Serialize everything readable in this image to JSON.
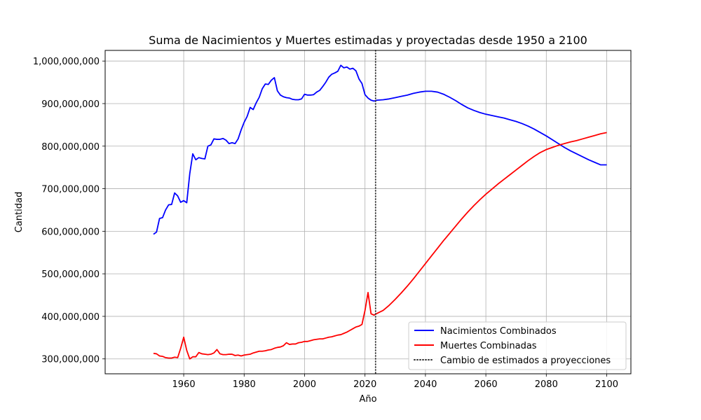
{
  "chart_data": {
    "type": "line",
    "title": "Suma de Nacimientos y Muertes estimadas y proyectadas desde 1950 a 2100",
    "xlabel": "Año",
    "ylabel": "Cantidad",
    "xlim": [
      1934,
      2108
    ],
    "ylim": [
      265000000,
      1025000000
    ],
    "xticks": [
      1960,
      1980,
      2000,
      2020,
      2040,
      2060,
      2080,
      2100
    ],
    "xtick_labels": [
      "1960",
      "1980",
      "2000",
      "2020",
      "2040",
      "2060",
      "2080",
      "2100"
    ],
    "yticks": [
      300000000,
      400000000,
      500000000,
      600000000,
      700000000,
      800000000,
      900000000,
      1000000000
    ],
    "ytick_labels": [
      "300,000,000",
      "400,000,000",
      "500,000,000",
      "600,000,000",
      "700,000,000",
      "800,000,000",
      "900,000,000",
      "1,000,000,000"
    ],
    "grid": true,
    "legend_position": "lower-right",
    "vline": {
      "x": 2023.5,
      "color": "#333333",
      "style": "dotted",
      "label": "Cambio de estimados a proyecciones"
    },
    "series": [
      {
        "name": "Nacimientos Combinados",
        "color": "#0000ff",
        "points": [
          [
            1950,
            593000000
          ],
          [
            1951,
            598000000
          ],
          [
            1952,
            630000000
          ],
          [
            1953,
            632000000
          ],
          [
            1954,
            650000000
          ],
          [
            1955,
            662000000
          ],
          [
            1956,
            663000000
          ],
          [
            1957,
            690000000
          ],
          [
            1958,
            683000000
          ],
          [
            1959,
            668000000
          ],
          [
            1960,
            672000000
          ],
          [
            1961,
            667000000
          ],
          [
            1962,
            735000000
          ],
          [
            1963,
            782000000
          ],
          [
            1964,
            768000000
          ],
          [
            1965,
            773000000
          ],
          [
            1966,
            771000000
          ],
          [
            1967,
            770000000
          ],
          [
            1968,
            800000000
          ],
          [
            1969,
            803000000
          ],
          [
            1970,
            817000000
          ],
          [
            1971,
            816000000
          ],
          [
            1972,
            816000000
          ],
          [
            1973,
            818000000
          ],
          [
            1974,
            814000000
          ],
          [
            1975,
            806000000
          ],
          [
            1976,
            808000000
          ],
          [
            1977,
            806000000
          ],
          [
            1978,
            817000000
          ],
          [
            1979,
            838000000
          ],
          [
            1980,
            856000000
          ],
          [
            1981,
            870000000
          ],
          [
            1982,
            891000000
          ],
          [
            1983,
            886000000
          ],
          [
            1984,
            902000000
          ],
          [
            1985,
            915000000
          ],
          [
            1986,
            935000000
          ],
          [
            1987,
            946000000
          ],
          [
            1988,
            945000000
          ],
          [
            1989,
            955000000
          ],
          [
            1990,
            961000000
          ],
          [
            1991,
            930000000
          ],
          [
            1992,
            920000000
          ],
          [
            1993,
            916000000
          ],
          [
            1994,
            914000000
          ],
          [
            1995,
            913000000
          ],
          [
            1996,
            910000000
          ],
          [
            1997,
            909000000
          ],
          [
            1998,
            909000000
          ],
          [
            1999,
            911000000
          ],
          [
            2000,
            922000000
          ],
          [
            2001,
            920000000
          ],
          [
            2002,
            920000000
          ],
          [
            2003,
            921000000
          ],
          [
            2004,
            927000000
          ],
          [
            2005,
            931000000
          ],
          [
            2006,
            940000000
          ],
          [
            2007,
            950000000
          ],
          [
            2008,
            962000000
          ],
          [
            2009,
            969000000
          ],
          [
            2010,
            972000000
          ],
          [
            2011,
            976000000
          ],
          [
            2012,
            990000000
          ],
          [
            2013,
            984000000
          ],
          [
            2014,
            986000000
          ],
          [
            2015,
            981000000
          ],
          [
            2016,
            983000000
          ],
          [
            2017,
            977000000
          ],
          [
            2018,
            958000000
          ],
          [
            2019,
            947000000
          ],
          [
            2020,
            921000000
          ],
          [
            2021,
            913000000
          ],
          [
            2022,
            908000000
          ],
          [
            2023,
            906000000
          ],
          [
            2024,
            908000000
          ],
          [
            2026,
            909000000
          ],
          [
            2028,
            911000000
          ],
          [
            2030,
            914000000
          ],
          [
            2032,
            917000000
          ],
          [
            2034,
            920000000
          ],
          [
            2036,
            924000000
          ],
          [
            2038,
            927000000
          ],
          [
            2040,
            929000000
          ],
          [
            2042,
            929000000
          ],
          [
            2044,
            927000000
          ],
          [
            2046,
            922000000
          ],
          [
            2048,
            915000000
          ],
          [
            2050,
            907000000
          ],
          [
            2052,
            898000000
          ],
          [
            2054,
            890000000
          ],
          [
            2056,
            884000000
          ],
          [
            2058,
            879000000
          ],
          [
            2060,
            875000000
          ],
          [
            2062,
            872000000
          ],
          [
            2064,
            869000000
          ],
          [
            2066,
            866000000
          ],
          [
            2068,
            862000000
          ],
          [
            2070,
            858000000
          ],
          [
            2072,
            853000000
          ],
          [
            2074,
            847000000
          ],
          [
            2076,
            840000000
          ],
          [
            2078,
            832000000
          ],
          [
            2080,
            824000000
          ],
          [
            2082,
            815000000
          ],
          [
            2084,
            806000000
          ],
          [
            2086,
            797000000
          ],
          [
            2088,
            789000000
          ],
          [
            2090,
            782000000
          ],
          [
            2092,
            775000000
          ],
          [
            2094,
            768000000
          ],
          [
            2096,
            762000000
          ],
          [
            2098,
            756000000
          ],
          [
            2100,
            756000000
          ]
        ]
      },
      {
        "name": "Muertes Combinadas",
        "color": "#ff0000",
        "points": [
          [
            1950,
            313000000
          ],
          [
            1951,
            312000000
          ],
          [
            1952,
            307000000
          ],
          [
            1953,
            306000000
          ],
          [
            1954,
            303000000
          ],
          [
            1955,
            302000000
          ],
          [
            1956,
            302000000
          ],
          [
            1957,
            304000000
          ],
          [
            1958,
            303000000
          ],
          [
            1959,
            325000000
          ],
          [
            1960,
            351000000
          ],
          [
            1961,
            320000000
          ],
          [
            1962,
            300000000
          ],
          [
            1963,
            305000000
          ],
          [
            1964,
            305000000
          ],
          [
            1965,
            315000000
          ],
          [
            1966,
            312000000
          ],
          [
            1967,
            311000000
          ],
          [
            1968,
            310000000
          ],
          [
            1969,
            311000000
          ],
          [
            1970,
            314000000
          ],
          [
            1971,
            322000000
          ],
          [
            1972,
            312000000
          ],
          [
            1973,
            310000000
          ],
          [
            1974,
            310000000
          ],
          [
            1975,
            311000000
          ],
          [
            1976,
            311000000
          ],
          [
            1977,
            308000000
          ],
          [
            1978,
            309000000
          ],
          [
            1979,
            307000000
          ],
          [
            1980,
            309000000
          ],
          [
            1981,
            310000000
          ],
          [
            1982,
            311000000
          ],
          [
            1983,
            314000000
          ],
          [
            1984,
            316000000
          ],
          [
            1985,
            318000000
          ],
          [
            1986,
            318000000
          ],
          [
            1987,
            319000000
          ],
          [
            1988,
            321000000
          ],
          [
            1989,
            322000000
          ],
          [
            1990,
            325000000
          ],
          [
            1991,
            327000000
          ],
          [
            1992,
            328000000
          ],
          [
            1993,
            331000000
          ],
          [
            1994,
            338000000
          ],
          [
            1995,
            334000000
          ],
          [
            1996,
            335000000
          ],
          [
            1997,
            335000000
          ],
          [
            1998,
            338000000
          ],
          [
            1999,
            339000000
          ],
          [
            2000,
            341000000
          ],
          [
            2001,
            341000000
          ],
          [
            2002,
            343000000
          ],
          [
            2003,
            345000000
          ],
          [
            2004,
            346000000
          ],
          [
            2005,
            347000000
          ],
          [
            2006,
            347000000
          ],
          [
            2007,
            349000000
          ],
          [
            2008,
            351000000
          ],
          [
            2009,
            352000000
          ],
          [
            2010,
            354000000
          ],
          [
            2011,
            356000000
          ],
          [
            2012,
            357000000
          ],
          [
            2013,
            360000000
          ],
          [
            2014,
            363000000
          ],
          [
            2015,
            367000000
          ],
          [
            2016,
            371000000
          ],
          [
            2017,
            375000000
          ],
          [
            2018,
            377000000
          ],
          [
            2019,
            381000000
          ],
          [
            2020,
            414000000
          ],
          [
            2021,
            456000000
          ],
          [
            2022,
            406000000
          ],
          [
            2023,
            403000000
          ],
          [
            2024,
            407000000
          ],
          [
            2026,
            414000000
          ],
          [
            2028,
            426000000
          ],
          [
            2030,
            440000000
          ],
          [
            2032,
            455000000
          ],
          [
            2034,
            471000000
          ],
          [
            2036,
            488000000
          ],
          [
            2038,
            506000000
          ],
          [
            2040,
            524000000
          ],
          [
            2042,
            542000000
          ],
          [
            2044,
            560000000
          ],
          [
            2046,
            578000000
          ],
          [
            2048,
            595000000
          ],
          [
            2050,
            612000000
          ],
          [
            2052,
            629000000
          ],
          [
            2054,
            645000000
          ],
          [
            2056,
            660000000
          ],
          [
            2058,
            674000000
          ],
          [
            2060,
            687000000
          ],
          [
            2062,
            699000000
          ],
          [
            2064,
            711000000
          ],
          [
            2066,
            722000000
          ],
          [
            2068,
            733000000
          ],
          [
            2070,
            744000000
          ],
          [
            2072,
            755000000
          ],
          [
            2074,
            766000000
          ],
          [
            2076,
            776000000
          ],
          [
            2078,
            785000000
          ],
          [
            2080,
            792000000
          ],
          [
            2082,
            797000000
          ],
          [
            2084,
            802000000
          ],
          [
            2086,
            806000000
          ],
          [
            2088,
            810000000
          ],
          [
            2090,
            813000000
          ],
          [
            2092,
            817000000
          ],
          [
            2094,
            821000000
          ],
          [
            2096,
            825000000
          ],
          [
            2098,
            829000000
          ],
          [
            2100,
            832000000
          ]
        ]
      }
    ]
  }
}
